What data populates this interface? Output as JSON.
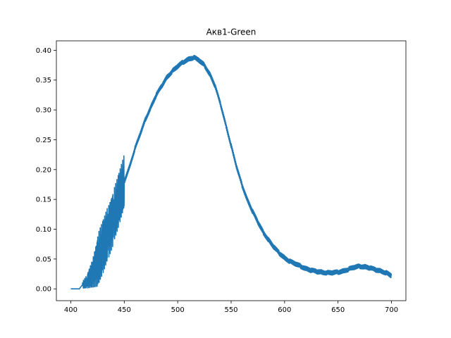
{
  "chart_data": {
    "type": "line",
    "title": "Акв1-Green",
    "xlabel": "",
    "ylabel": "",
    "xlim": [
      386.5,
      713.5
    ],
    "ylim": [
      -0.0198,
      0.4158
    ],
    "xticks": [
      400,
      450,
      500,
      550,
      600,
      650,
      700
    ],
    "yticks": [
      0.0,
      0.05,
      0.1,
      0.15,
      0.2,
      0.25,
      0.3,
      0.35,
      0.4
    ],
    "ytick_labels": [
      "0.00",
      "0.05",
      "0.10",
      "0.15",
      "0.20",
      "0.25",
      "0.30",
      "0.35",
      "0.40"
    ],
    "grid": false,
    "series_color": "#1f77b4",
    "series": [
      {
        "name": "",
        "x": [
          400,
          408,
          410,
          415,
          420,
          425,
          430,
          435,
          440,
          445,
          450,
          455,
          460,
          465,
          470,
          475,
          480,
          485,
          490,
          495,
          500,
          505,
          510,
          515,
          520,
          525,
          530,
          535,
          540,
          545,
          550,
          555,
          560,
          565,
          570,
          575,
          580,
          585,
          590,
          595,
          600,
          605,
          610,
          615,
          620,
          625,
          630,
          635,
          640,
          645,
          650,
          655,
          660,
          665,
          670,
          675,
          680,
          685,
          690,
          695,
          700
        ],
        "y": [
          0.0,
          0.0,
          0.005,
          0.012,
          0.025,
          0.045,
          0.07,
          0.095,
          0.12,
          0.15,
          0.18,
          0.205,
          0.235,
          0.26,
          0.285,
          0.305,
          0.325,
          0.34,
          0.355,
          0.365,
          0.373,
          0.38,
          0.385,
          0.388,
          0.383,
          0.375,
          0.36,
          0.34,
          0.31,
          0.275,
          0.24,
          0.205,
          0.175,
          0.15,
          0.13,
          0.112,
          0.095,
          0.082,
          0.07,
          0.06,
          0.052,
          0.046,
          0.042,
          0.038,
          0.034,
          0.031,
          0.029,
          0.028,
          0.027,
          0.027,
          0.028,
          0.03,
          0.033,
          0.036,
          0.038,
          0.037,
          0.035,
          0.032,
          0.03,
          0.027,
          0.022
        ]
      }
    ]
  }
}
